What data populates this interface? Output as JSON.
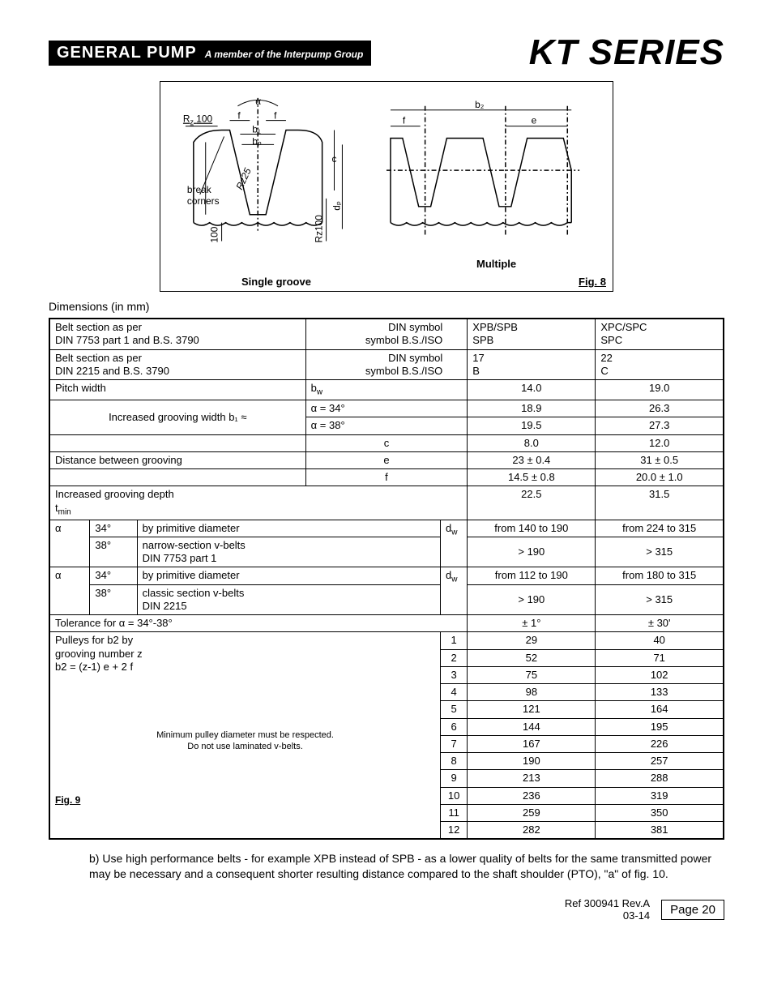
{
  "header": {
    "banner_main": "GENERAL PUMP",
    "banner_sub": "A member of the Interpump Group",
    "series": "KT SERIES"
  },
  "figure8": {
    "break_corners": "break\ncorners",
    "rz100": "R",
    "rz100_sub": "z",
    "rz100_val": "100",
    "single": "Single groove",
    "multiple": "Multiple",
    "label": "Fig. 8",
    "alpha": "α",
    "f": "f",
    "b1": "b₁",
    "bp": "bₚ",
    "c": "c",
    "dp": "dₚ",
    "rz25": "Rz25",
    "rz100v": "Rz100",
    "hundred": "100",
    "b2": "b₂",
    "e": "e"
  },
  "dimensions_label": "Dimensions (in mm)",
  "table": {
    "r1": {
      "c1a": "Belt section as per",
      "c1b": "DIN 7753 part 1 and B.S. 3790",
      "c2a": "DIN symbol",
      "c2b": "symbol B.S./ISO",
      "c3a": "XPB/SPB",
      "c3b": "SPB",
      "c4a": "XPC/SPC",
      "c4b": "SPC"
    },
    "r2": {
      "c1a": "Belt section as per",
      "c1b": "DIN 2215 and B.S. 3790",
      "c2a": "DIN symbol",
      "c2b": "symbol B.S./ISO",
      "c3a": "17",
      "c3b": "B",
      "c4a": "22",
      "c4b": "C"
    },
    "pitch": {
      "label": "Pitch width",
      "sym": "b",
      "sym_sub": "w",
      "v1": "14.0",
      "v2": "19.0"
    },
    "inc_width": {
      "label": "Increased grooving width b₁ ≈",
      "a34": "α = 34°",
      "a38": "α = 38°",
      "v34_1": "18.9",
      "v34_2": "26.3",
      "v38_1": "19.5",
      "v38_2": "27.3"
    },
    "row_c": {
      "sym": "c",
      "v1": "8.0",
      "v2": "12.0"
    },
    "dist": {
      "label": "Distance between grooving",
      "sym": "e",
      "v1": "23 ± 0.4",
      "v2": "31 ± 0.5"
    },
    "row_f": {
      "sym": "f",
      "v1": "14.5 ± 0.8",
      "v2": "20.0 ± 1.0"
    },
    "inc_depth": {
      "label": "Increased grooving depth",
      "sym": "t",
      "sym_sub": "min",
      "v1": "22.5",
      "v2": "31.5"
    },
    "alpha1": {
      "sym": "α",
      "a34": "34°",
      "a38": "38°",
      "l1": "by primitive diameter",
      "l2a": "narrow-section v-belts",
      "l2b": "DIN 7753 part 1",
      "dw": "d",
      "dw_sub": "w",
      "v34_1": "from 140 to 190",
      "v34_2": "from 224 to 315",
      "v38_1": "> 190",
      "v38_2": "> 315"
    },
    "alpha2": {
      "sym": "α",
      "a34": "34°",
      "a38": "38°",
      "l1": "by primitive diameter",
      "l2a": "classic section v-belts",
      "l2b": "DIN 2215",
      "dw": "d",
      "dw_sub": "w",
      "v34_1": "from 112 to 190",
      "v34_2": "from 180 to 315",
      "v38_1": "> 190",
      "v38_2": "> 315"
    },
    "tol": {
      "label": "Tolerance for α = 34°-38°",
      "v1": "± 1°",
      "v2": "± 30'"
    },
    "pulleys": {
      "l1": "Pulleys for b2 by",
      "l2": "grooving number z",
      "l3": "b2 = (z-1) e + 2 f",
      "note1": "Minimum pulley diameter must be respected.",
      "note2": "Do not use laminated v-belts.",
      "fig": "Fig. 9",
      "rows": [
        {
          "n": "1",
          "v1": "29",
          "v2": "40"
        },
        {
          "n": "2",
          "v1": "52",
          "v2": "71"
        },
        {
          "n": "3",
          "v1": "75",
          "v2": "102"
        },
        {
          "n": "4",
          "v1": "98",
          "v2": "133"
        },
        {
          "n": "5",
          "v1": "121",
          "v2": "164"
        },
        {
          "n": "6",
          "v1": "144",
          "v2": "195"
        },
        {
          "n": "7",
          "v1": "167",
          "v2": "226"
        },
        {
          "n": "8",
          "v1": "190",
          "v2": "257"
        },
        {
          "n": "9",
          "v1": "213",
          "v2": "288"
        },
        {
          "n": "10",
          "v1": "236",
          "v2": "319"
        },
        {
          "n": "11",
          "v1": "259",
          "v2": "350"
        },
        {
          "n": "12",
          "v1": "282",
          "v2": "381"
        }
      ]
    }
  },
  "body_para": "b) Use high performance belts - for example XPB instead of SPB - as a lower quality of belts for the same transmitted power may be necessary and a consequent shorter resulting distance compared to the shaft shoulder (PTO), \"a\" of fig. 10.",
  "footer": {
    "ref": "Ref 300941 Rev.A",
    "date": "03-14",
    "page": "Page 20"
  }
}
